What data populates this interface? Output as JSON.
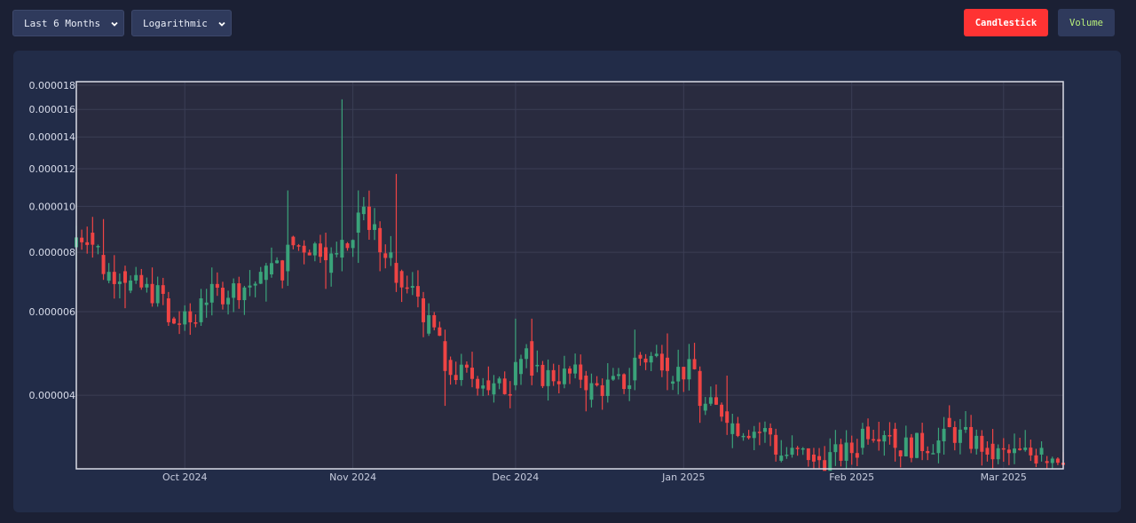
{
  "controls": {
    "range_label": "Last 6 Months",
    "scale_label": "Logarithmic",
    "candlestick_label": "Candlestick",
    "volume_label": "Volume"
  },
  "colors": {
    "up": "#3aa37a",
    "down": "#ef4444",
    "plot_bg": "#292b3f",
    "panel_bg": "#222c48",
    "active_button": "#ff3333"
  },
  "chart_data": {
    "type": "candlestick",
    "scale": "log",
    "ylim": [
      2.8e-06,
      1.83e-05
    ],
    "y_ticks": [
      "0.000004",
      "0.000006",
      "0.000008",
      "0.000010",
      "0.000012",
      "0.000014",
      "0.000016",
      "0.000018"
    ],
    "x_ticks": [
      {
        "label": "Oct 2024",
        "date": "2024-10-01"
      },
      {
        "label": "Nov 2024",
        "date": "2024-11-01"
      },
      {
        "label": "Dec 2024",
        "date": "2024-12-01"
      },
      {
        "label": "Jan 2025",
        "date": "2025-01-01"
      },
      {
        "label": "Feb 2025",
        "date": "2025-02-01"
      },
      {
        "label": "Mar 2025",
        "date": "2025-03-01"
      }
    ],
    "xlim": [
      "2024-09-11",
      "2025-03-12"
    ],
    "grid": true,
    "series_sample": [
      {
        "date": "2024-09-11",
        "open": 8.2e-06,
        "close": 8.6e-06,
        "high": 9.1e-06,
        "low": 7.3e-06
      },
      {
        "date": "2024-09-14",
        "open": 8.8e-06,
        "close": 8.3e-06,
        "high": 9.5e-06,
        "low": 7.8e-06
      },
      {
        "date": "2024-09-16",
        "open": 7.9e-06,
        "close": 7.2e-06,
        "high": 9.4e-06,
        "low": 7e-06
      },
      {
        "date": "2024-09-20",
        "open": 7.3e-06,
        "close": 6.9e-06,
        "high": 7.5e-06,
        "low": 6.1e-06
      },
      {
        "date": "2024-09-28",
        "open": 6.4e-06,
        "close": 5.7e-06,
        "high": 6.6e-06,
        "low": 5.6e-06
      },
      {
        "date": "2024-10-04",
        "open": 5.7e-06,
        "close": 6.4e-06,
        "high": 6.7e-06,
        "low": 5.6e-06
      },
      {
        "date": "2024-10-16",
        "open": 7e-06,
        "close": 7.5e-06,
        "high": 7.6e-06,
        "low": 6.3e-06
      },
      {
        "date": "2024-10-20",
        "open": 7.3e-06,
        "close": 8.3e-06,
        "high": 1.08e-05,
        "low": 6.8e-06
      },
      {
        "date": "2024-10-27",
        "open": 8.2e-06,
        "close": 7.7e-06,
        "high": 8.8e-06,
        "low": 6.7e-06
      },
      {
        "date": "2024-10-30",
        "open": 7.8e-06,
        "close": 8.5e-06,
        "high": 1.68e-05,
        "low": 7.3e-06
      },
      {
        "date": "2024-11-02",
        "open": 8.8e-06,
        "close": 9.7e-06,
        "high": 1.08e-05,
        "low": 7.6e-06
      },
      {
        "date": "2024-11-06",
        "open": 9e-06,
        "close": 8e-06,
        "high": 9.3e-06,
        "low": 7.3e-06
      },
      {
        "date": "2024-11-09",
        "open": 7.6e-06,
        "close": 6.9e-06,
        "high": 1.17e-05,
        "low": 6.6e-06
      },
      {
        "date": "2024-11-14",
        "open": 6.4e-06,
        "close": 5.7e-06,
        "high": 6.6e-06,
        "low": 5.3e-06
      },
      {
        "date": "2024-11-18",
        "open": 5.2e-06,
        "close": 4.5e-06,
        "high": 5.5e-06,
        "low": 3.8e-06
      },
      {
        "date": "2024-11-26",
        "open": 4.3e-06,
        "close": 4.1e-06,
        "high": 4.6e-06,
        "low": 4e-06
      },
      {
        "date": "2024-12-01",
        "open": 4.2e-06,
        "close": 4.7e-06,
        "high": 5.8e-06,
        "low": 4.1e-06
      },
      {
        "date": "2024-12-04",
        "open": 5.2e-06,
        "close": 4.4e-06,
        "high": 5.8e-06,
        "low": 4.2e-06
      },
      {
        "date": "2024-12-14",
        "open": 4.4e-06,
        "close": 4.1e-06,
        "high": 4.5e-06,
        "low": 3.7e-06
      },
      {
        "date": "2024-12-23",
        "open": 4.3e-06,
        "close": 4.8e-06,
        "high": 5.5e-06,
        "low": 4.1e-06
      },
      {
        "date": "2024-12-29",
        "open": 4.8e-06,
        "close": 4.5e-06,
        "high": 5.4e-06,
        "low": 4.1e-06
      },
      {
        "date": "2025-01-04",
        "open": 4.5e-06,
        "close": 3.8e-06,
        "high": 4.6e-06,
        "low": 3.5e-06
      },
      {
        "date": "2025-01-09",
        "open": 3.7e-06,
        "close": 3.5e-06,
        "high": 4.4e-06,
        "low": 3.3e-06
      },
      {
        "date": "2025-01-18",
        "open": 3.3e-06,
        "close": 3e-06,
        "high": 3.4e-06,
        "low": 2.9e-06
      },
      {
        "date": "2025-01-25",
        "open": 3e-06,
        "close": 2.9e-06,
        "high": 3.1e-06,
        "low": 2.8e-06
      },
      {
        "date": "2025-02-03",
        "open": 3.1e-06,
        "close": 3.4e-06,
        "high": 3.5e-06,
        "low": 3e-06
      },
      {
        "date": "2025-02-09",
        "open": 3.4e-06,
        "close": 3.1e-06,
        "high": 3.5e-06,
        "low": 2.9e-06
      },
      {
        "date": "2025-02-18",
        "open": 3.2e-06,
        "close": 3.4e-06,
        "high": 3.6e-06,
        "low": 3e-06
      },
      {
        "date": "2025-02-26",
        "open": 3.1e-06,
        "close": 3e-06,
        "high": 3.2e-06,
        "low": 2.9e-06
      },
      {
        "date": "2025-03-08",
        "open": 3e-06,
        "close": 3.1e-06,
        "high": 3.2e-06,
        "low": 2.9e-06
      }
    ]
  }
}
